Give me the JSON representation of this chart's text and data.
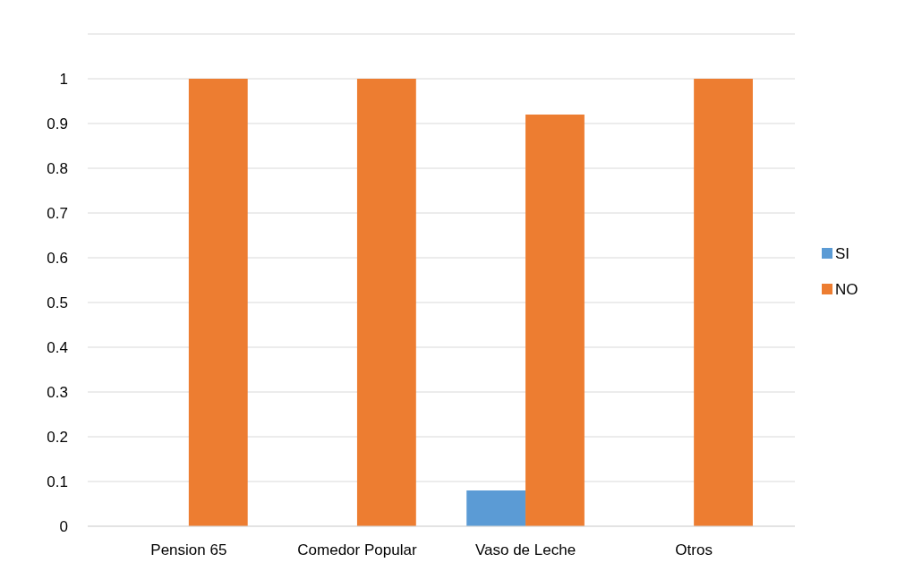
{
  "chart_data": {
    "type": "bar",
    "categories": [
      "Pension 65",
      "Comedor Popular",
      "Vaso de Leche",
      "Otros"
    ],
    "series": [
      {
        "name": "SI",
        "color": "#5b9bd5",
        "values": [
          0,
          0,
          0.08,
          0
        ]
      },
      {
        "name": "NO",
        "color": "#ed7d31",
        "values": [
          1,
          1,
          0.92,
          1
        ]
      }
    ],
    "ylim": [
      0,
      1.1
    ],
    "yticks": [
      0,
      0.1,
      0.2,
      0.3,
      0.4,
      0.5,
      0.6,
      0.7,
      0.8,
      0.9,
      1,
      {
        "value": 1.1,
        "label": null
      }
    ],
    "grid": "y",
    "legend": "right"
  }
}
